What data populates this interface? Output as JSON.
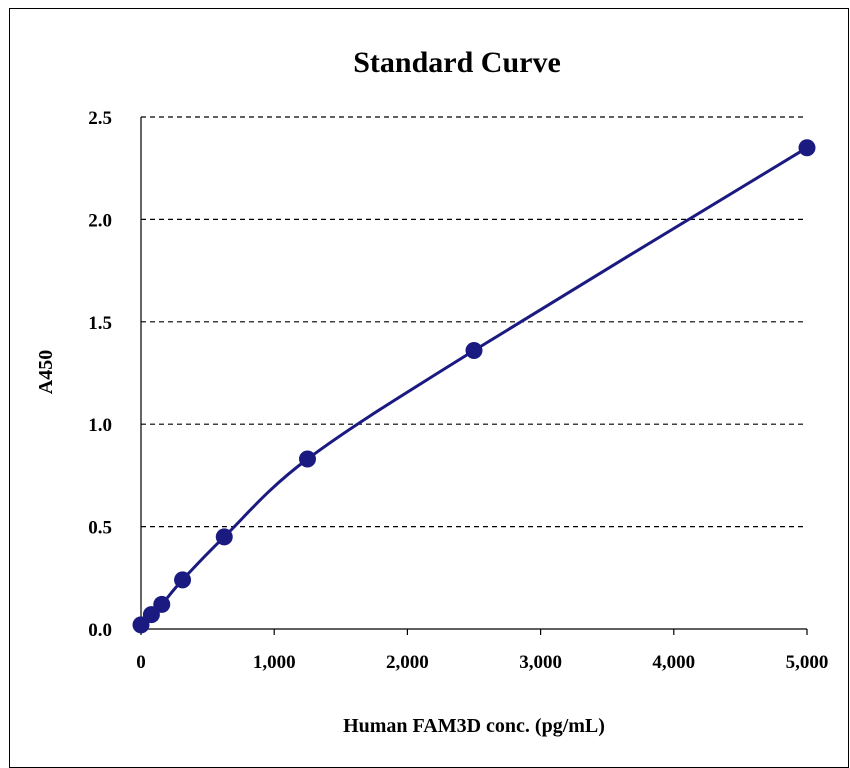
{
  "chart_data": {
    "type": "line",
    "title": "Standard Curve",
    "xlabel": "Human FAM3D conc. (pg/mL)",
    "ylabel": "A450",
    "xlim": [
      0,
      5000
    ],
    "ylim": [
      0,
      2.5
    ],
    "x_ticks": [
      "0",
      "1,000",
      "2,000",
      "3,000",
      "4,000",
      "5,000"
    ],
    "y_ticks": [
      "0.0",
      "0.5",
      "1.0",
      "1.5",
      "2.0",
      "2.5"
    ],
    "grid": "horizontal dashed",
    "series": [
      {
        "color": "#1a1a80",
        "marker": "circle",
        "smooth": true,
        "points": [
          {
            "x": 0,
            "y": 0.02
          },
          {
            "x": 78,
            "y": 0.07
          },
          {
            "x": 156,
            "y": 0.12
          },
          {
            "x": 312,
            "y": 0.24
          },
          {
            "x": 625,
            "y": 0.45
          },
          {
            "x": 1250,
            "y": 0.83
          },
          {
            "x": 2500,
            "y": 1.36
          },
          {
            "x": 5000,
            "y": 2.35
          }
        ]
      }
    ]
  }
}
